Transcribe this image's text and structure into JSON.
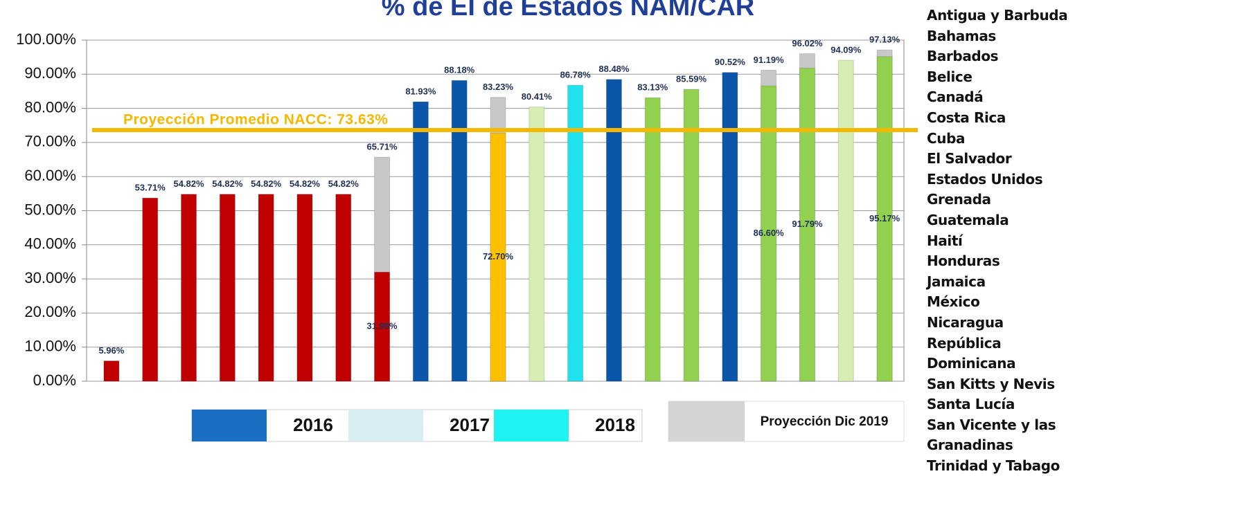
{
  "chart_data": {
    "type": "bar",
    "title": "% de EI de Estados NAM/CAR",
    "categories": [
      "Antigua y Barbuda",
      "Bahamas",
      "Barbados",
      "Belice",
      "Canadá",
      "Costa Rica",
      "Cuba",
      "El Salvador",
      "Estados Unidos",
      "Grenada",
      "Guatemala",
      "Haití",
      "Honduras",
      "Jamaica",
      "México",
      "Nicaragua",
      "República Dominicana",
      "San Kitts y Nevis",
      "Santa Lucía",
      "San Vicente y las Granadinas",
      "Trinidad y Tabago"
    ],
    "values": [
      5.96,
      53.71,
      54.82,
      54.82,
      54.82,
      54.82,
      54.82,
      31.98,
      81.93,
      88.18,
      72.7,
      80.41,
      86.78,
      88.48,
      83.13,
      85.59,
      90.52,
      86.6,
      91.79,
      94.09,
      95.17
    ],
    "value_labels": [
      "5.96%",
      "53.71%",
      "54.82%",
      "54.82%",
      "54.82%",
      "54.82%",
      "54.82%",
      "31.98%",
      "81.93%",
      "88.18%",
      "72.70%",
      "80.41%",
      "86.78%",
      "88.48%",
      "83.13%",
      "85.59%",
      "90.52%",
      "86.60%",
      "91.79%",
      "94.09%",
      "95.17%"
    ],
    "colors": [
      "#c00000",
      "#c00000",
      "#c00000",
      "#c00000",
      "#c00000",
      "#c00000",
      "#c00000",
      "#c00000",
      "#0b56a8",
      "#0b56a8",
      "#ffc000",
      "#d6eeb4",
      "#1fe2ee",
      "#0b56a8",
      "#92d050",
      "#92d050",
      "#0b56a8",
      "#92d050",
      "#92d050",
      "#d6eeb4",
      "#92d050"
    ],
    "projection": {
      "name": "Proyección Dic 2019",
      "color": "#c8c8c8",
      "values": [
        null,
        null,
        null,
        null,
        null,
        null,
        null,
        65.71,
        null,
        null,
        83.23,
        null,
        null,
        null,
        null,
        null,
        null,
        91.19,
        96.02,
        null,
        97.13
      ],
      "value_labels": [
        null,
        null,
        null,
        null,
        null,
        null,
        null,
        "65.71%",
        null,
        null,
        "83.23%",
        null,
        null,
        null,
        null,
        null,
        null,
        "91.19%",
        "96.02%",
        null,
        "97.13%"
      ]
    },
    "reference_line": {
      "text": "Proyección Promedio NACC: 73.63%",
      "value": 73.63,
      "color": "#f5b800"
    },
    "legend": [
      {
        "label": "2016",
        "color": "#1a6ec4"
      },
      {
        "label": "2017",
        "color": "#d9eef3"
      },
      {
        "label": "2018",
        "color": "#1ef2f2"
      }
    ],
    "ylim": [
      0,
      100
    ],
    "yticks": [
      {
        "value": 0,
        "label": "0.00%"
      },
      {
        "value": 10,
        "label": "10.00%"
      },
      {
        "value": 20,
        "label": "20.00%"
      },
      {
        "value": 30,
        "label": "30.00%"
      },
      {
        "value": 40,
        "label": "40.00%"
      },
      {
        "value": 50,
        "label": "50.00%"
      },
      {
        "value": 60,
        "label": "60.00%"
      },
      {
        "value": 70,
        "label": "70.00%"
      },
      {
        "value": 80,
        "label": "80.00%"
      },
      {
        "value": 90,
        "label": "90.00%"
      },
      {
        "value": 100,
        "label": "100.00%"
      }
    ],
    "grid": true
  }
}
